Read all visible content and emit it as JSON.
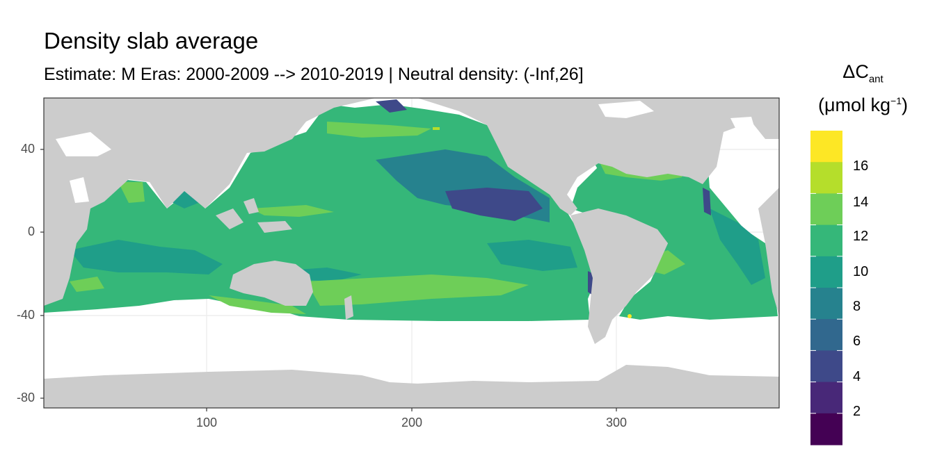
{
  "title": "Density slab average",
  "subtitle": "Estimate: M Eras: 2000-2009 --> 2010-2019 | Neutral density: (-Inf,26]",
  "y_ticks": [
    "40",
    "0",
    "-40",
    "-80"
  ],
  "x_ticks": [
    "100",
    "200",
    "300"
  ],
  "legend": {
    "title_symbol": "ΔC",
    "title_sub": "ant",
    "unit_pre": "(μmol kg",
    "unit_sup": "−1",
    "unit_post": ")",
    "labels": [
      "16",
      "14",
      "12",
      "10",
      "8",
      "6",
      "4",
      "2"
    ],
    "colors": [
      "#fde725",
      "#b5de2b",
      "#6ece58",
      "#35b779",
      "#1f9e89",
      "#26828e",
      "#31688e",
      "#3e4989",
      "#482878",
      "#440154"
    ]
  },
  "map_colors": {
    "land": "#cccccc",
    "ocean_no_data": "#ffffff",
    "grid": "#ebebeb"
  }
}
